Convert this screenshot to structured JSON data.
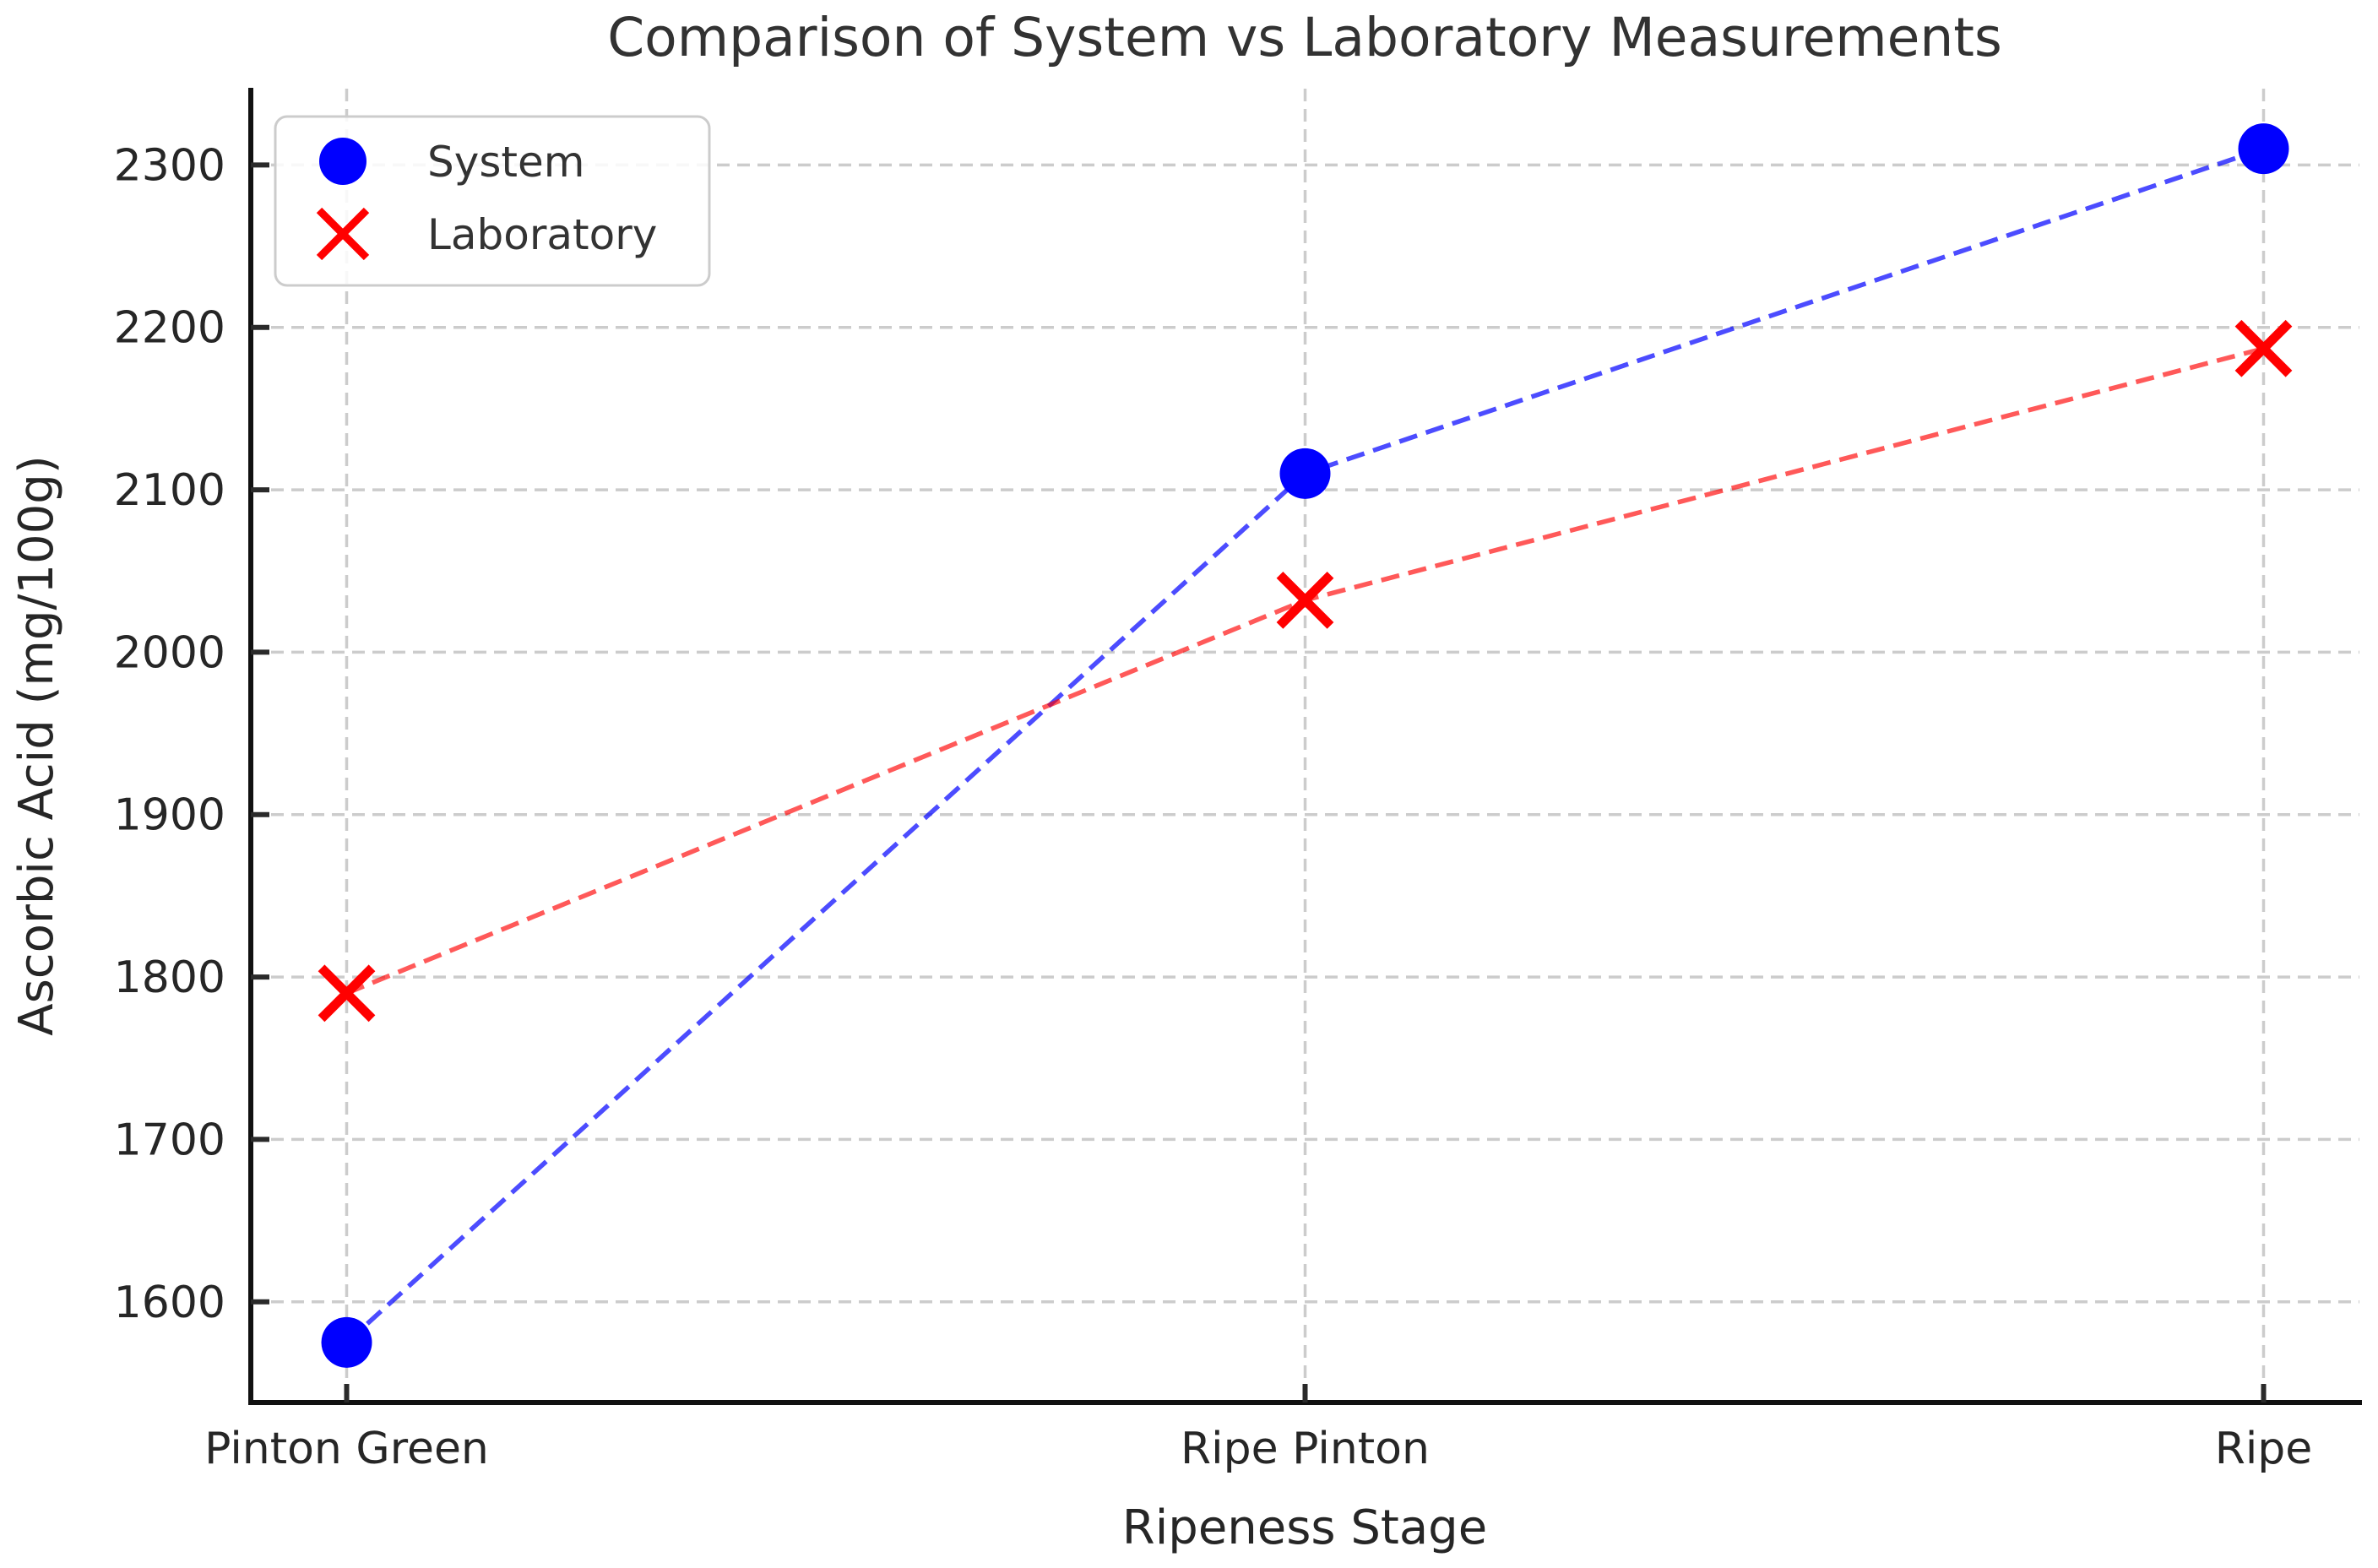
{
  "chart_data": {
    "type": "scatter",
    "title": "Comparison of System vs Laboratory Measurements",
    "xlabel": "Ripeness Stage",
    "ylabel": "Ascorbic Acid (mg/100g)",
    "categories": [
      "Pinton Green",
      "Ripe Pinton",
      "Ripe"
    ],
    "series": [
      {
        "name": "System",
        "marker": "circle",
        "color": "#0000ff",
        "line_color": "rgba(0,0,255,0.70)",
        "values": [
          1575,
          2110,
          2310
        ]
      },
      {
        "name": "Laboratory",
        "marker": "x",
        "color": "#ff0000",
        "line_color": "rgba(255,0,0,0.65)",
        "values": [
          1790,
          2032,
          2187
        ]
      }
    ],
    "yticks": [
      1600,
      1700,
      1800,
      1900,
      2000,
      2100,
      2200,
      2300
    ],
    "ylim": [
      1538,
      2347
    ],
    "grid": true,
    "grid_color": "#cccccc",
    "line_style": "dashed",
    "legend": {
      "position": "upper-left",
      "items": [
        "System",
        "Laboratory"
      ]
    }
  }
}
